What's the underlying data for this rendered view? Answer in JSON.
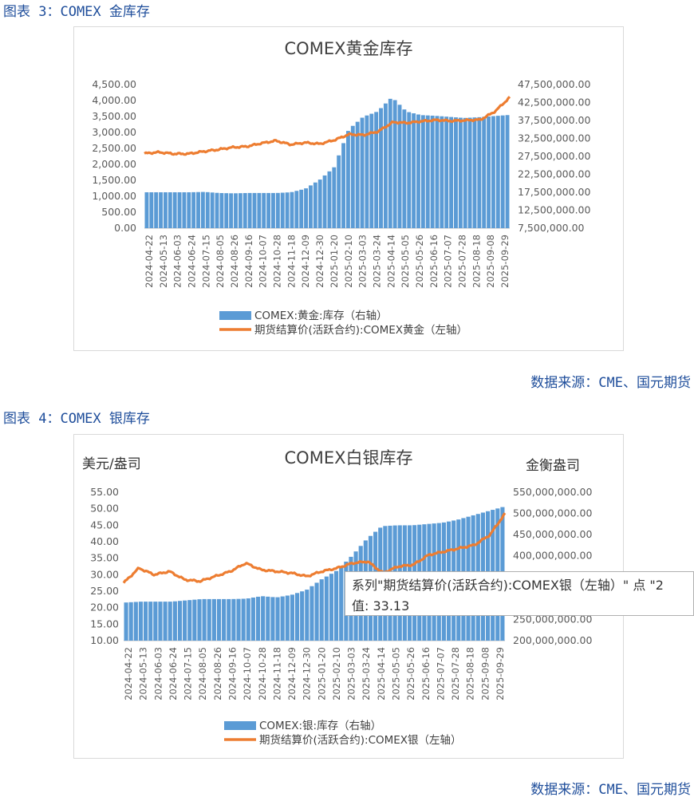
{
  "fig3": {
    "heading": "图表 3：COMEX 金库存",
    "source": "数据来源：CME、国元期货"
  },
  "fig4": {
    "heading": "图表 4：COMEX 银库存",
    "source": "数据来源：CME、国元期货"
  },
  "tooltip": {
    "line1": "系列\"期货结算价(活跃合约):COMEX银（左轴）\" 点 \"2",
    "line2": "值: 33.13"
  },
  "colors": {
    "bar": "#5b9bd5",
    "line": "#ed7d31",
    "heading": "#1f4e9b"
  },
  "chart_data": [
    {
      "type": "bar+line",
      "title": "COMEX黄金库存",
      "categories": [
        "2024-04-22",
        "2024-05-13",
        "2024-06-03",
        "2024-06-24",
        "2024-07-15",
        "2024-08-05",
        "2024-08-26",
        "2024-09-16",
        "2024-10-07",
        "2024-10-28",
        "2024-11-18",
        "2024-12-09",
        "2024-12-30",
        "2025-01-20",
        "2025-02-10",
        "2025-03-03",
        "2025-03-24",
        "2025-04-14",
        "2025-05-05",
        "2025-05-26",
        "2025-06-16",
        "2025-07-07",
        "2025-07-28",
        "2025-08-18",
        "2025-09-08",
        "2025-09-29"
      ],
      "y_left": {
        "min": 0,
        "max": 4500,
        "step": 500,
        "ticks": [
          "0.00",
          "500.00",
          "1,000.00",
          "1,500.00",
          "2,000.00",
          "2,500.00",
          "3,000.00",
          "3,500.00",
          "4,000.00",
          "4,500.00"
        ]
      },
      "y_right": {
        "min": 7500000,
        "max": 47500000,
        "step": 5000000,
        "ticks": [
          "7,500,000.00",
          "12,500,000.00",
          "17,500,000.00",
          "22,500,000.00",
          "27,500,000.00",
          "32,500,000.00",
          "37,500,000.00",
          "42,500,000.00",
          "47,500,000.00"
        ]
      },
      "series": [
        {
          "name": "COMEX:黄金:库存（右轴）",
          "kind": "bar",
          "axis": "right",
          "values": [
            17500000,
            17500000,
            17500000,
            17500000,
            17600000,
            17300000,
            17200000,
            17300000,
            17300000,
            17300000,
            17500000,
            18500000,
            21000000,
            24500000,
            35000000,
            38500000,
            40000000,
            44000000,
            40000000,
            39000000,
            38800000,
            38500000,
            38200000,
            38400000,
            38700000,
            39000000
          ]
        },
        {
          "name": "期货结算价(活跃合约):COMEX黄金（左轴）",
          "kind": "line",
          "axis": "left",
          "values": [
            2340,
            2380,
            2330,
            2330,
            2400,
            2460,
            2530,
            2560,
            2660,
            2740,
            2620,
            2680,
            2640,
            2760,
            2940,
            2920,
            3030,
            3320,
            3300,
            3350,
            3390,
            3360,
            3380,
            3400,
            3660,
            4100
          ]
        }
      ],
      "legend": "bottom"
    },
    {
      "type": "bar+line",
      "title": "COMEX白银库存",
      "ylabel_left": "美元/盎司",
      "ylabel_right": "金衡盎司",
      "categories": [
        "2024-04-22",
        "2024-05-13",
        "2024-06-03",
        "2024-06-24",
        "2024-07-15",
        "2024-08-05",
        "2024-08-26",
        "2024-09-16",
        "2024-10-07",
        "2024-10-28",
        "2024-11-18",
        "2024-12-09",
        "2024-12-30",
        "2025-01-20",
        "2025-02-10",
        "2025-03-03",
        "2025-03-24",
        "2025-04-14",
        "2025-05-05",
        "2025-05-26",
        "2025-06-16",
        "2025-07-07",
        "2025-07-28",
        "2025-08-18",
        "2025-09-08",
        "2025-09-29"
      ],
      "y_left": {
        "min": 10,
        "max": 55,
        "step": 5,
        "ticks": [
          "10.00",
          "15.00",
          "20.00",
          "25.00",
          "30.00",
          "35.00",
          "40.00",
          "45.00",
          "50.00",
          "55.00"
        ]
      },
      "y_right": {
        "min": 200000000,
        "max": 550000000,
        "step": 50000000,
        "ticks": [
          "200,000,000.00",
          "250,000,000.00",
          "300,000,000.00",
          "350,000,000.00",
          "400,000,000.00",
          "450,000,000.00",
          "500,000,000.00",
          "550,000,000.00"
        ]
      },
      "series": [
        {
          "name": "COMEX:银:库存（右轴）",
          "kind": "bar",
          "axis": "right",
          "values": [
            290000000,
            292000000,
            292000000,
            292000000,
            295000000,
            298000000,
            298000000,
            298000000,
            299000000,
            305000000,
            302000000,
            308000000,
            320000000,
            345000000,
            365000000,
            400000000,
            440000000,
            470000000,
            472000000,
            472000000,
            475000000,
            478000000,
            485000000,
            495000000,
            505000000,
            515000000
          ]
        },
        {
          "name": "期货结算价(活跃合约):COMEX银（左轴）",
          "kind": "line",
          "axis": "left",
          "values": [
            27.5,
            32.0,
            30.0,
            31.0,
            28.5,
            28.0,
            29.5,
            31.0,
            33.5,
            31.5,
            31.0,
            30.5,
            29.5,
            31.0,
            32.0,
            33.5,
            34.0,
            30.5,
            32.5,
            33.0,
            36.0,
            37.0,
            38.0,
            39.0,
            42.0,
            48.5
          ]
        }
      ],
      "legend": "bottom"
    }
  ]
}
